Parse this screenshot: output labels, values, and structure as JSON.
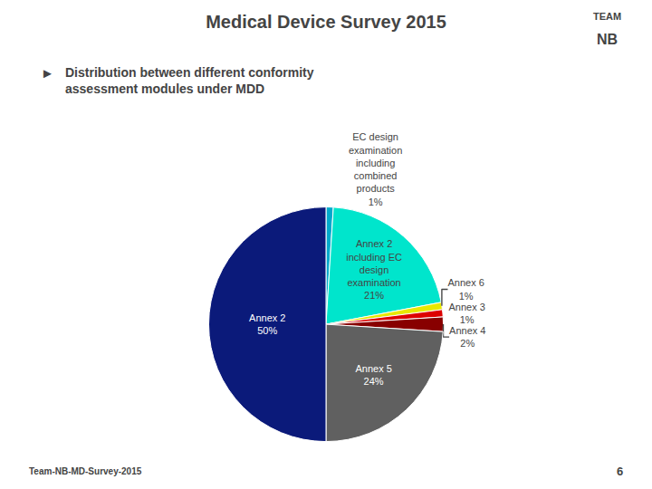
{
  "chart_data": {
    "type": "pie",
    "title": "Medical Device Survey 2015",
    "subtitle": "Distribution between different conformity\nassessment modules under MDD",
    "categories": [
      "EC design\nexamination\nincluding\ncombined\nproducts",
      "Annex 2\nincluding EC\ndesign\nexamination",
      "Annex 6",
      "Annex 3",
      "Annex 4",
      "Annex 5",
      "Annex 2"
    ],
    "values": [
      1,
      21,
      1,
      1,
      2,
      24,
      50
    ],
    "value_labels": [
      "1%",
      "21%",
      "1%",
      "1%",
      "2%",
      "24%",
      "50%"
    ],
    "colors": [
      "#00AACC",
      "#00E5CC",
      "#E8E800",
      "#DD0000",
      "#880000",
      "#606060",
      "#0B1A7A"
    ],
    "data_labels": true,
    "annotations": [
      "►",
      "Team-NB-MD-Survey-2015",
      "6",
      "TEAM",
      "NB"
    ]
  }
}
